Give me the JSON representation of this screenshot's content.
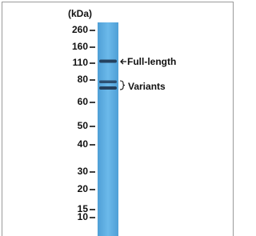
{
  "blot": {
    "unit_label": "(kDa)",
    "markers": [
      "260",
      "160",
      "110",
      "80",
      "60",
      "50",
      "40",
      "30",
      "20",
      "15",
      "10"
    ],
    "annotations": {
      "full_length": "Full-length",
      "variants": "Variants"
    }
  }
}
